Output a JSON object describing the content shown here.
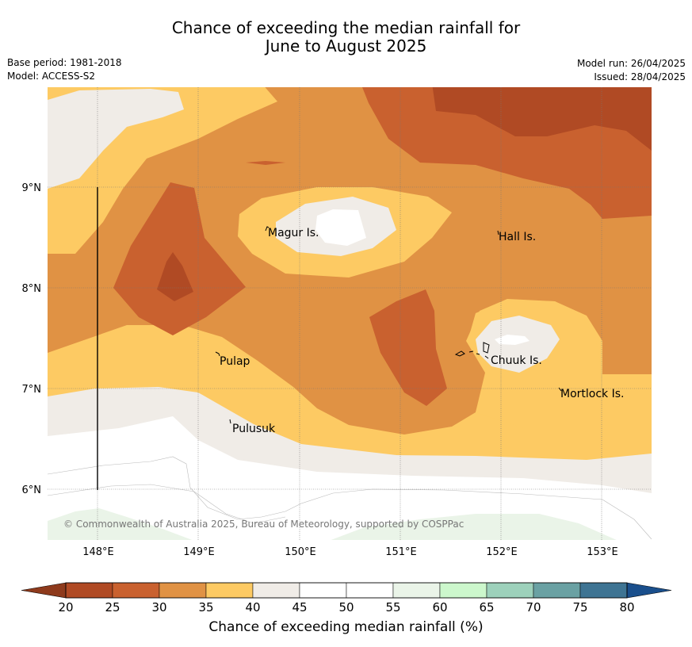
{
  "header": {
    "title_line1": "Chance of exceeding the median rainfall for",
    "title_line2": "June to August 2025",
    "base_period": "Base period: 1981-2018",
    "model": "Model: ACCESS-S2",
    "model_run": "Model run: 26/04/2025",
    "issued": "Issued: 28/04/2025"
  },
  "map": {
    "longitude_labels": [
      "148°E",
      "149°E",
      "150°E",
      "151°E",
      "152°E",
      "153°E"
    ],
    "latitude_labels": [
      "9°N",
      "8°N",
      "7°N",
      "6°N"
    ],
    "places": [
      {
        "name": "Magur Is."
      },
      {
        "name": "Hall Is."
      },
      {
        "name": "Pulap"
      },
      {
        "name": "Chuuk Is."
      },
      {
        "name": "Mortlock Is."
      },
      {
        "name": "Pulusuk"
      }
    ],
    "copyright": "© Commonwealth of Australia 2025, Bureau of Meteorology, supported by COSPPac"
  },
  "colorbar": {
    "ticks": [
      "20",
      "25",
      "30",
      "35",
      "40",
      "45",
      "50",
      "55",
      "60",
      "65",
      "70",
      "75",
      "80"
    ],
    "colors": {
      "below_20": "#8e3a1c",
      "20-25": "#b04a24",
      "25-30": "#c9612f",
      "30-35": "#e09244",
      "35-40": "#fdca63",
      "40-45": "#f0ece7",
      "45-50": "#ffffff",
      "50-55": "#ffffff",
      "55-60": "#eaf4e8",
      "60-65": "#ccf7cc",
      "65-70": "#9dd1bb",
      "70-75": "#6aa1a3",
      "75-80": "#3e7493",
      "above_80": "#1a4f8c"
    },
    "title": "Chance of exceeding median rainfall (%)"
  }
}
